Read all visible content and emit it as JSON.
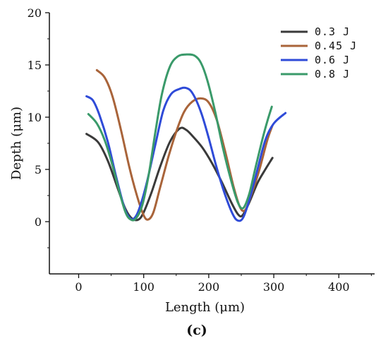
{
  "chart_data": {
    "type": "line",
    "xlabel": "Length (μm)",
    "ylabel": "Depth (μm)",
    "xlim": [
      -45,
      455
    ],
    "ylim": [
      -5,
      20
    ],
    "xticks": [
      0,
      100,
      200,
      300,
      400
    ],
    "yticks": [
      0,
      5,
      10,
      15,
      20
    ],
    "grid": false,
    "legend_position": "top-right",
    "caption": "(c)",
    "series": [
      {
        "name": "0.3 J",
        "color": "#3a3a3a",
        "points": [
          [
            12,
            8.4
          ],
          [
            30,
            7.6
          ],
          [
            45,
            5.8
          ],
          [
            60,
            3.2
          ],
          [
            72,
            1.2
          ],
          [
            82,
            0.3
          ],
          [
            92,
            0.2
          ],
          [
            100,
            0.9
          ],
          [
            112,
            2.8
          ],
          [
            125,
            5.2
          ],
          [
            140,
            7.6
          ],
          [
            155,
            8.9
          ],
          [
            165,
            8.8
          ],
          [
            175,
            8.2
          ],
          [
            190,
            7.1
          ],
          [
            205,
            5.6
          ],
          [
            220,
            3.8
          ],
          [
            235,
            1.8
          ],
          [
            245,
            0.7
          ],
          [
            252,
            0.6
          ],
          [
            262,
            1.8
          ],
          [
            275,
            3.7
          ],
          [
            287,
            5.0
          ],
          [
            298,
            6.1
          ]
        ]
      },
      {
        "name": "0.45 J",
        "color": "#a9643a",
        "points": [
          [
            28,
            14.5
          ],
          [
            40,
            13.8
          ],
          [
            52,
            12.0
          ],
          [
            65,
            8.8
          ],
          [
            78,
            5.2
          ],
          [
            90,
            2.4
          ],
          [
            100,
            0.6
          ],
          [
            107,
            0.2
          ],
          [
            115,
            0.9
          ],
          [
            125,
            3.2
          ],
          [
            138,
            6.2
          ],
          [
            150,
            8.6
          ],
          [
            162,
            10.5
          ],
          [
            175,
            11.5
          ],
          [
            188,
            11.8
          ],
          [
            200,
            11.4
          ],
          [
            212,
            9.8
          ],
          [
            225,
            6.8
          ],
          [
            238,
            3.4
          ],
          [
            248,
            1.4
          ],
          [
            256,
            1.1
          ],
          [
            265,
            2.5
          ],
          [
            278,
            5.0
          ],
          [
            290,
            7.8
          ],
          [
            298,
            9.2
          ]
        ]
      },
      {
        "name": "0.6 J",
        "color": "#2f4bd8",
        "points": [
          [
            12,
            12.0
          ],
          [
            22,
            11.6
          ],
          [
            32,
            10.2
          ],
          [
            45,
            7.6
          ],
          [
            58,
            4.2
          ],
          [
            70,
            1.4
          ],
          [
            78,
            0.4
          ],
          [
            85,
            0.3
          ],
          [
            93,
            1.2
          ],
          [
            105,
            3.8
          ],
          [
            118,
            7.4
          ],
          [
            130,
            10.6
          ],
          [
            142,
            12.2
          ],
          [
            155,
            12.7
          ],
          [
            165,
            12.8
          ],
          [
            175,
            12.3
          ],
          [
            188,
            10.5
          ],
          [
            200,
            8.0
          ],
          [
            212,
            5.2
          ],
          [
            225,
            2.6
          ],
          [
            237,
            0.7
          ],
          [
            245,
            0.1
          ],
          [
            253,
            0.4
          ],
          [
            263,
            2.2
          ],
          [
            275,
            5.0
          ],
          [
            287,
            7.8
          ],
          [
            300,
            9.4
          ],
          [
            318,
            10.4
          ]
        ]
      },
      {
        "name": "0.8 J",
        "color": "#3a9a6a",
        "points": [
          [
            15,
            10.3
          ],
          [
            28,
            9.4
          ],
          [
            40,
            7.8
          ],
          [
            52,
            5.4
          ],
          [
            62,
            3.0
          ],
          [
            72,
            0.9
          ],
          [
            80,
            0.2
          ],
          [
            88,
            0.3
          ],
          [
            98,
            1.6
          ],
          [
            108,
            4.6
          ],
          [
            118,
            8.6
          ],
          [
            128,
            12.2
          ],
          [
            140,
            14.8
          ],
          [
            152,
            15.8
          ],
          [
            165,
            16.0
          ],
          [
            178,
            15.9
          ],
          [
            188,
            15.2
          ],
          [
            198,
            13.5
          ],
          [
            210,
            10.5
          ],
          [
            222,
            7.0
          ],
          [
            235,
            3.8
          ],
          [
            245,
            1.8
          ],
          [
            253,
            1.3
          ],
          [
            262,
            2.6
          ],
          [
            272,
            5.2
          ],
          [
            283,
            8.0
          ],
          [
            290,
            9.6
          ],
          [
            297,
            11.0
          ]
        ]
      }
    ]
  }
}
